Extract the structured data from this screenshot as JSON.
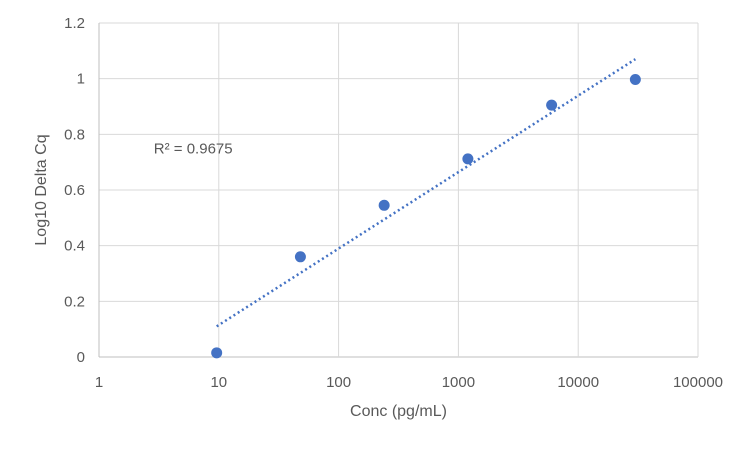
{
  "chart_data": {
    "type": "scatter",
    "title": "",
    "xlabel": "Conc (pg/mL)",
    "ylabel": "Log10 Delta Cq",
    "x_scale": "log",
    "xlim": [
      1,
      100000
    ],
    "ylim": [
      0,
      1.2
    ],
    "x_ticks": [
      {
        "value": 1,
        "label": "1"
      },
      {
        "value": 10,
        "label": "10"
      },
      {
        "value": 100,
        "label": "100"
      },
      {
        "value": 1000,
        "label": "1000"
      },
      {
        "value": 10000,
        "label": "10000"
      },
      {
        "value": 100000,
        "label": "100000"
      }
    ],
    "y_ticks": [
      {
        "value": 0,
        "label": "0"
      },
      {
        "value": 0.2,
        "label": "0.2"
      },
      {
        "value": 0.4,
        "label": "0.4"
      },
      {
        "value": 0.6,
        "label": "0.6"
      },
      {
        "value": 0.8,
        "label": "0.8"
      },
      {
        "value": 1.0,
        "label": "1"
      },
      {
        "value": 1.2,
        "label": "1.2"
      }
    ],
    "grid": true,
    "series": [
      {
        "color": "#4472C4",
        "points": [
          {
            "x": 9.6,
            "y": 0.015
          },
          {
            "x": 48,
            "y": 0.36
          },
          {
            "x": 240,
            "y": 0.545
          },
          {
            "x": 1200,
            "y": 0.712
          },
          {
            "x": 6000,
            "y": 0.905
          },
          {
            "x": 30000,
            "y": 0.997
          }
        ]
      }
    ],
    "trendline": {
      "type": "logarithmic",
      "style": "dotted",
      "color": "#4472C4",
      "x_range": [
        9.6,
        30000
      ],
      "y_range": [
        0.11,
        1.07
      ]
    },
    "annotation": {
      "text": "R² = 0.9675",
      "x": 10,
      "y": 0.75
    }
  }
}
